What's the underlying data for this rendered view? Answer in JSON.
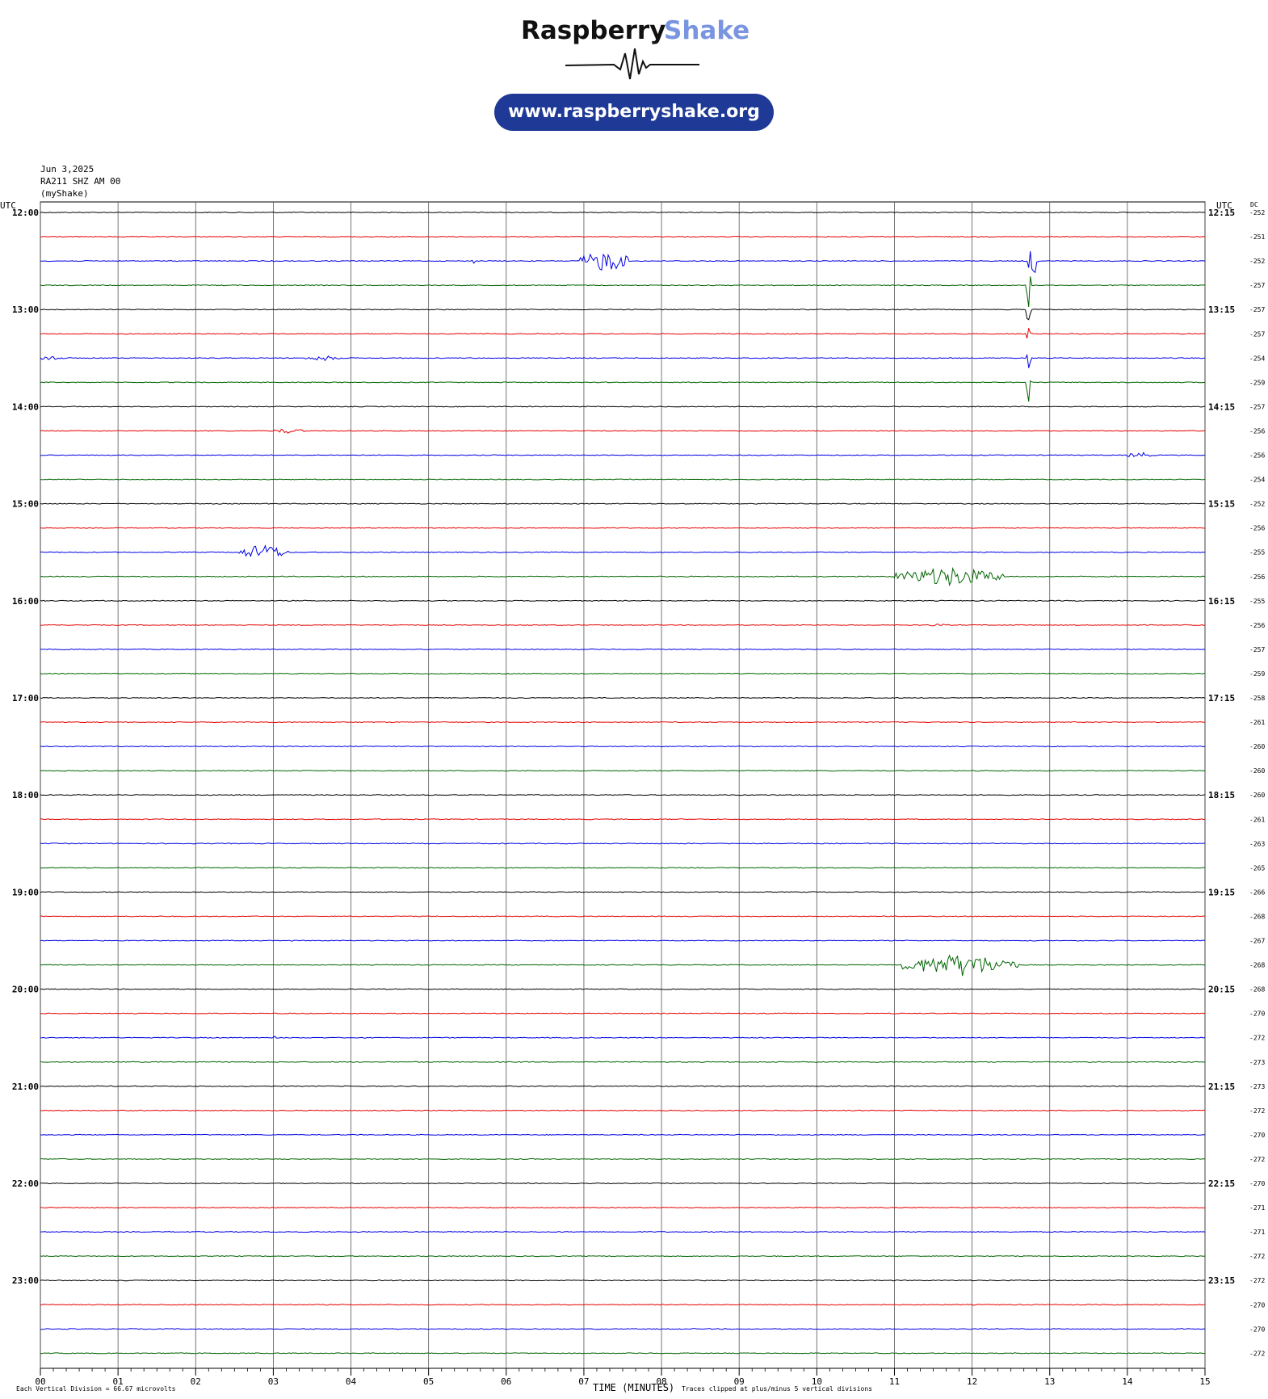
{
  "brand": {
    "word1": "Raspberry",
    "word2": "Shake",
    "url": "www.raspberryshake.org",
    "accent_color": "#7a95e0",
    "pill_color": "#1f3a96"
  },
  "header": {
    "date": "Jun 3,2025",
    "station": "RA211 SHZ AM 00",
    "source": "(myShake)"
  },
  "labels": {
    "utc_left": "UTC",
    "utc_right": "UTC",
    "dc": "DC",
    "xlabel": "TIME (MINUTES)",
    "division": "Each Vertical Division =   66.67 microvolts",
    "clip": "Traces clipped at plus/minus 5 vertical divisions"
  },
  "chart_data": {
    "type": "line",
    "title": "",
    "xlabel": "TIME (MINUTES)",
    "xlim": [
      0,
      15
    ],
    "x_ticks": [
      "00",
      "01",
      "02",
      "03",
      "04",
      "05",
      "06",
      "07",
      "08",
      "09",
      "10",
      "11",
      "12",
      "13",
      "14",
      "15"
    ],
    "trace_colors": [
      "#000000",
      "#e60000",
      "#0000e6",
      "#006400"
    ],
    "grid": true,
    "hour_labels_left": [
      "12:00",
      "13:00",
      "14:00",
      "15:00",
      "16:00",
      "17:00",
      "18:00",
      "19:00",
      "20:00",
      "21:00",
      "22:00",
      "23:00"
    ],
    "hour_labels_right": [
      "12:15",
      "13:15",
      "14:15",
      "15:15",
      "16:15",
      "17:15",
      "18:15",
      "19:15",
      "20:15",
      "21:15",
      "22:15",
      "23:15"
    ],
    "dc_values": [
      -252,
      -251,
      -252,
      -257,
      -257,
      -257,
      -254,
      -259,
      -257,
      -256,
      -256,
      -254,
      -252,
      -256,
      -255,
      -256,
      -255,
      -256,
      -257,
      -259,
      -258,
      -261,
      -260,
      -260,
      -260,
      -261,
      -263,
      -265,
      -266,
      -268,
      -267,
      -268,
      -268,
      -270,
      -272,
      -273,
      -273,
      -272,
      -270,
      -272,
      -270,
      -271,
      -271,
      -272,
      -272,
      -270,
      -270,
      -272
    ],
    "events": [
      {
        "trace": 2,
        "start": 6.95,
        "end": 7.6,
        "amp": 2.5
      },
      {
        "trace": 2,
        "start": 5.55,
        "end": 5.62,
        "amp": 0.6
      },
      {
        "trace": 2,
        "start": 12.72,
        "end": 12.85,
        "amp": 5
      },
      {
        "trace": 3,
        "start": 12.7,
        "end": 12.76,
        "amp": 5
      },
      {
        "trace": 4,
        "start": 12.7,
        "end": 12.76,
        "amp": 5
      },
      {
        "trace": 5,
        "start": 11.48,
        "end": 11.52,
        "amp": 1
      },
      {
        "trace": 5,
        "start": 12.7,
        "end": 12.76,
        "amp": 5
      },
      {
        "trace": 6,
        "start": 0.0,
        "end": 0.3,
        "amp": 0.7
      },
      {
        "trace": 6,
        "start": 3.4,
        "end": 3.9,
        "amp": 0.6
      },
      {
        "trace": 6,
        "start": 12.7,
        "end": 12.76,
        "amp": 5
      },
      {
        "trace": 7,
        "start": 3.45,
        "end": 3.5,
        "amp": 0.4
      },
      {
        "trace": 7,
        "start": 12.7,
        "end": 12.76,
        "amp": 5
      },
      {
        "trace": 9,
        "start": 3.0,
        "end": 3.4,
        "amp": 0.6
      },
      {
        "trace": 10,
        "start": 14.0,
        "end": 14.3,
        "amp": 0.8
      },
      {
        "trace": 14,
        "start": 2.55,
        "end": 3.2,
        "amp": 1.8
      },
      {
        "trace": 15,
        "start": 11.0,
        "end": 12.4,
        "amp": 2.2
      },
      {
        "trace": 17,
        "start": 11.4,
        "end": 11.7,
        "amp": 0.3
      },
      {
        "trace": 31,
        "start": 11.1,
        "end": 12.6,
        "amp": 2.6
      },
      {
        "trace": 34,
        "start": 3.0,
        "end": 3.06,
        "amp": 0.5
      }
    ]
  }
}
